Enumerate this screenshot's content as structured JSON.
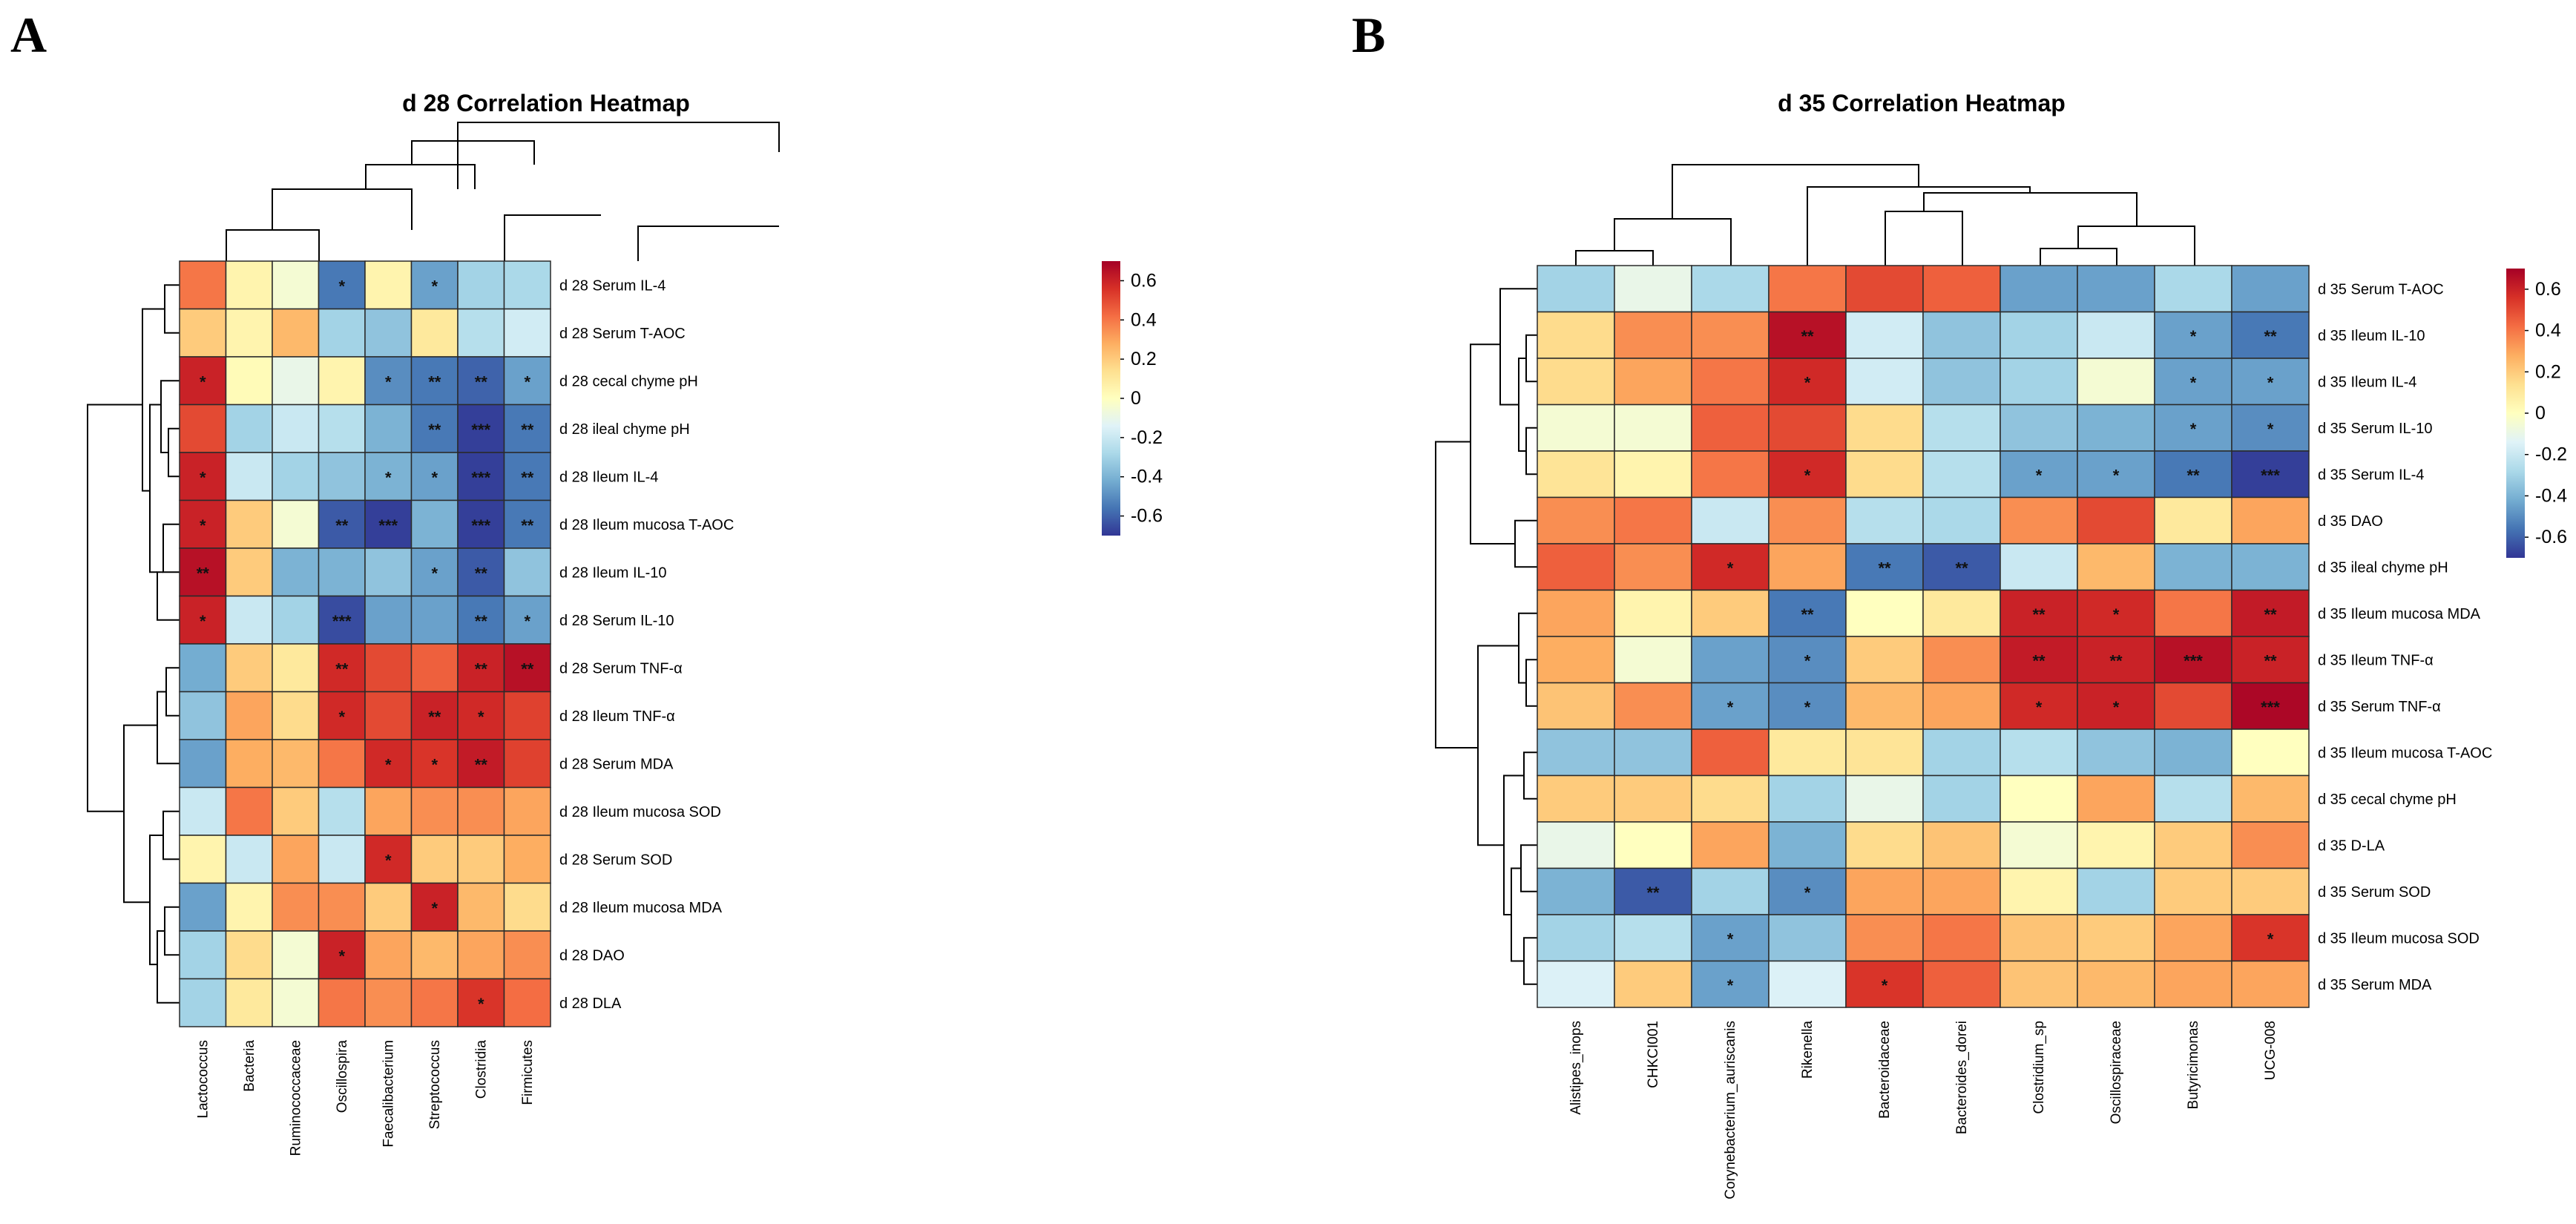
{
  "panels": [
    {
      "letter": "A",
      "chart_data": {
        "type": "heatmap",
        "title": "d 28 Correlation Heatmap",
        "columns": [
          "Lactococcus",
          "Bacteria",
          "Ruminococcaceae",
          "Oscillospira",
          "Faecalibacterium",
          "Streptococcus",
          "Clostridia",
          "Firmicutes"
        ],
        "rows": [
          "d 28 Serum IL-4",
          "d 28 Serum T-AOC",
          "d 28 cecal chyme pH",
          "d 28 ileal chyme pH",
          "d 28 Ileum IL-4",
          "d 28 Ileum mucosa T-AOC",
          "d 28 Ileum IL-10",
          "d 28 Serum IL-10",
          "d 28 Serum TNF-α",
          "d 28 Ileum TNF-α",
          "d 28 Serum MDA",
          "d 28 Ileum mucosa SOD",
          "d 28 Serum SOD",
          "d 28 Ileum mucosa MDA",
          "d 28 DAO",
          "d 28 DLA"
        ],
        "values": [
          [
            0.4,
            0.05,
            -0.05,
            -0.55,
            0.05,
            -0.45,
            -0.3,
            -0.28
          ],
          [
            0.2,
            0.05,
            0.25,
            -0.3,
            -0.35,
            0.1,
            -0.25,
            -0.18
          ],
          [
            0.6,
            0.02,
            -0.1,
            0.05,
            -0.5,
            -0.55,
            -0.6,
            -0.45
          ],
          [
            0.5,
            -0.3,
            -0.2,
            -0.25,
            -0.4,
            -0.55,
            -0.68,
            -0.55
          ],
          [
            0.6,
            -0.2,
            -0.3,
            -0.35,
            -0.4,
            -0.45,
            -0.68,
            -0.55
          ],
          [
            0.6,
            0.2,
            -0.05,
            -0.62,
            -0.68,
            -0.4,
            -0.68,
            -0.55
          ],
          [
            0.65,
            0.2,
            -0.4,
            -0.4,
            -0.35,
            -0.45,
            -0.62,
            -0.35
          ],
          [
            0.6,
            -0.2,
            -0.3,
            -0.65,
            -0.45,
            -0.45,
            -0.55,
            -0.45
          ],
          [
            -0.42,
            0.2,
            0.1,
            0.58,
            0.5,
            0.45,
            0.6,
            0.65
          ],
          [
            -0.35,
            0.3,
            0.15,
            0.58,
            0.5,
            0.6,
            0.58,
            0.52
          ],
          [
            -0.45,
            0.28,
            0.25,
            0.4,
            0.58,
            0.55,
            0.62,
            0.52
          ],
          [
            -0.2,
            0.4,
            0.2,
            -0.25,
            0.3,
            0.35,
            0.35,
            0.3
          ],
          [
            0.05,
            -0.2,
            0.3,
            -0.2,
            0.58,
            0.2,
            0.2,
            0.28
          ],
          [
            -0.45,
            0.05,
            0.35,
            0.35,
            0.2,
            0.6,
            0.25,
            0.15
          ],
          [
            -0.3,
            0.15,
            -0.05,
            0.6,
            0.3,
            0.25,
            0.3,
            0.35
          ],
          [
            -0.3,
            0.1,
            -0.05,
            0.4,
            0.35,
            0.4,
            0.55,
            0.42
          ]
        ],
        "significance": [
          [
            "",
            "",
            "",
            "*",
            "",
            "*",
            "",
            ""
          ],
          [
            "",
            "",
            "",
            "",
            "",
            "",
            "",
            ""
          ],
          [
            "*",
            "",
            "",
            "",
            "*",
            "**",
            "**",
            "*"
          ],
          [
            "",
            "",
            "",
            "",
            "",
            "**",
            "***",
            "**"
          ],
          [
            "*",
            "",
            "",
            "",
            "*",
            "*",
            "***",
            "**"
          ],
          [
            "*",
            "",
            "",
            "**",
            "***",
            "",
            "***",
            "**"
          ],
          [
            "**",
            "",
            "",
            "",
            "",
            "*",
            "**",
            ""
          ],
          [
            "*",
            "",
            "",
            "***",
            "",
            "",
            "**",
            "*"
          ],
          [
            "",
            "",
            "",
            "**",
            "",
            "",
            "**",
            "**"
          ],
          [
            "",
            "",
            "",
            "*",
            "",
            "**",
            "*",
            ""
          ],
          [
            "",
            "",
            "",
            "",
            "*",
            "*",
            "**",
            ""
          ],
          [
            "",
            "",
            "",
            "",
            "",
            "",
            "",
            ""
          ],
          [
            "",
            "",
            "",
            "",
            "*",
            "",
            "",
            ""
          ],
          [
            "",
            "",
            "",
            "",
            "",
            "*",
            "",
            ""
          ],
          [
            "",
            "",
            "",
            "*",
            "",
            "",
            "",
            ""
          ],
          [
            "",
            "",
            "",
            "",
            "",
            "",
            "*",
            ""
          ]
        ],
        "legend": {
          "ticks": [
            "0.6",
            "0.4",
            "0.2",
            "0",
            "-0.2",
            "-0.4",
            "-0.6"
          ],
          "range": [
            -0.7,
            0.7
          ]
        }
      }
    },
    {
      "letter": "B",
      "chart_data": {
        "type": "heatmap",
        "title": "d 35 Correlation Heatmap",
        "columns": [
          "Alistipes_inops",
          "CHKCI001",
          "Corynebacterium_auriscanis",
          "Rikenella",
          "Bacteroidaceae",
          "Bacteroides_dorei",
          "Clostridium_sp",
          "Oscillospiraceae",
          "Butyricimonas",
          "UCG-008"
        ],
        "rows": [
          "d 35 Serum T-AOC",
          "d 35 Ileum IL-10",
          "d 35 Ileum IL-4",
          "d 35 Serum IL-10",
          "d 35 Serum IL-4",
          "d 35 DAO",
          "d 35 ileal chyme pH",
          "d 35 Ileum mucosa MDA",
          "d 35 Ileum TNF-α",
          "d 35 Serum TNF-α",
          "d 35 Ileum mucosa T-AOC",
          "d 35 cecal chyme pH",
          "d 35 D-LA",
          "d 35 Serum SOD",
          "d 35 Ileum mucosa SOD",
          "d 35 Serum MDA"
        ],
        "values": [
          [
            -0.3,
            -0.1,
            -0.28,
            0.4,
            0.5,
            0.45,
            -0.45,
            -0.45,
            -0.28,
            -0.45
          ],
          [
            0.15,
            0.35,
            0.35,
            0.65,
            -0.18,
            -0.35,
            -0.3,
            -0.2,
            -0.45,
            -0.55
          ],
          [
            0.15,
            0.3,
            0.4,
            0.58,
            -0.18,
            -0.35,
            -0.3,
            -0.05,
            -0.45,
            -0.45
          ],
          [
            -0.05,
            -0.05,
            0.45,
            0.5,
            0.15,
            -0.25,
            -0.35,
            -0.4,
            -0.45,
            -0.5
          ],
          [
            0.12,
            0.05,
            0.4,
            0.58,
            0.15,
            -0.25,
            -0.45,
            -0.45,
            -0.55,
            -0.68
          ],
          [
            0.35,
            0.4,
            -0.2,
            0.35,
            -0.25,
            -0.28,
            0.35,
            0.5,
            0.1,
            0.3
          ],
          [
            0.45,
            0.35,
            0.58,
            0.3,
            -0.55,
            -0.62,
            -0.2,
            0.25,
            -0.4,
            -0.4
          ],
          [
            0.3,
            0.05,
            0.2,
            -0.55,
            0.0,
            0.1,
            0.6,
            0.58,
            0.4,
            0.62
          ],
          [
            0.28,
            -0.05,
            -0.45,
            -0.5,
            0.2,
            0.35,
            0.62,
            0.6,
            0.65,
            0.6
          ],
          [
            0.22,
            0.35,
            -0.45,
            -0.5,
            0.25,
            0.3,
            0.58,
            0.6,
            0.5,
            0.68
          ],
          [
            -0.35,
            -0.35,
            0.45,
            0.1,
            0.12,
            -0.3,
            -0.25,
            -0.35,
            -0.4,
            0.0
          ],
          [
            0.2,
            0.2,
            0.15,
            -0.3,
            -0.1,
            -0.3,
            0.0,
            0.3,
            -0.25,
            0.25
          ],
          [
            -0.1,
            0.0,
            0.3,
            -0.4,
            0.15,
            0.22,
            -0.05,
            0.05,
            0.2,
            0.35
          ],
          [
            -0.4,
            -0.62,
            -0.3,
            -0.5,
            0.3,
            0.3,
            0.05,
            -0.3,
            0.2,
            0.2
          ],
          [
            -0.3,
            -0.25,
            -0.45,
            -0.35,
            0.35,
            0.4,
            0.22,
            0.2,
            0.3,
            0.55
          ],
          [
            -0.15,
            0.2,
            -0.45,
            -0.15,
            0.55,
            0.45,
            0.22,
            0.25,
            0.3,
            0.3
          ]
        ],
        "significance": [
          [
            "",
            "",
            "",
            "",
            "",
            "",
            "",
            "",
            "",
            ""
          ],
          [
            "",
            "",
            "",
            "**",
            "",
            "",
            "",
            "",
            "*",
            "**"
          ],
          [
            "",
            "",
            "",
            "*",
            "",
            "",
            "",
            "",
            "*",
            "*"
          ],
          [
            "",
            "",
            "",
            "",
            "",
            "",
            "",
            "",
            "*",
            "*"
          ],
          [
            "",
            "",
            "",
            "*",
            "",
            "",
            "*",
            "*",
            "**",
            "***"
          ],
          [
            "",
            "",
            "",
            "",
            "",
            "",
            "",
            "",
            "",
            ""
          ],
          [
            "",
            "",
            "*",
            "",
            "**",
            "**",
            "",
            "",
            "",
            ""
          ],
          [
            "",
            "",
            "",
            "**",
            "",
            "",
            "**",
            "*",
            "",
            "**"
          ],
          [
            "",
            "",
            "",
            "*",
            "",
            "",
            "**",
            "**",
            "***",
            "**"
          ],
          [
            "",
            "",
            "*",
            "*",
            "",
            "",
            "*",
            "*",
            "",
            "***"
          ],
          [
            "",
            "",
            "",
            "",
            "",
            "",
            "",
            "",
            "",
            ""
          ],
          [
            "",
            "",
            "",
            "",
            "",
            "",
            "",
            "",
            "",
            ""
          ],
          [
            "",
            "",
            "",
            "",
            "",
            "",
            "",
            "",
            "",
            ""
          ],
          [
            "",
            "**",
            "",
            "*",
            "",
            "",
            "",
            "",
            "",
            ""
          ],
          [
            "",
            "",
            "*",
            "",
            "",
            "",
            "",
            "",
            "",
            "*"
          ],
          [
            "",
            "",
            "*",
            "",
            "*",
            "",
            "",
            "",
            "",
            ""
          ]
        ],
        "legend": {
          "ticks": [
            "0.6",
            "0.4",
            "0.2",
            "0",
            "-0.2",
            "-0.4",
            "-0.6"
          ],
          "range": [
            -0.7,
            0.7
          ]
        }
      }
    }
  ],
  "colors": {
    "scale": [
      "#313695",
      "#4575b4",
      "#74add1",
      "#abd9e9",
      "#e0f3f8",
      "#ffffbf",
      "#fee090",
      "#fdae61",
      "#f46d43",
      "#d73027",
      "#a50026"
    ],
    "grid": "#222222",
    "dendrogram": "#000000"
  }
}
